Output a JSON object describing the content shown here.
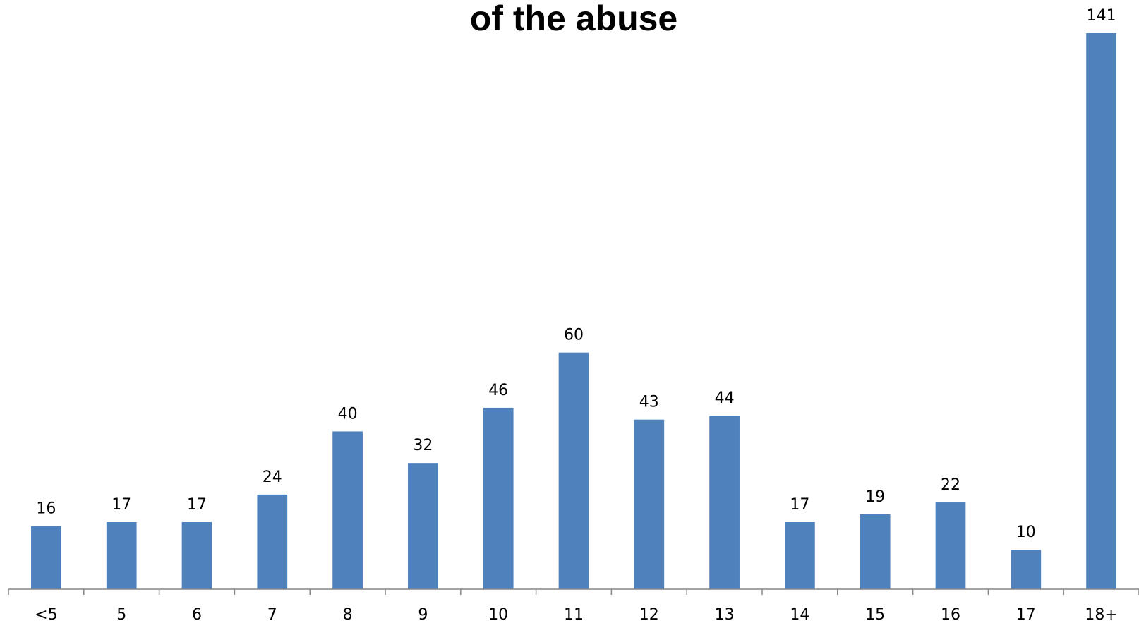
{
  "chart_data": {
    "type": "bar",
    "title": "of the abuse",
    "xlabel": "",
    "ylabel": "",
    "categories": [
      "<5",
      "5",
      "6",
      "7",
      "8",
      "9",
      "10",
      "11",
      "12",
      "13",
      "14",
      "15",
      "16",
      "17",
      "18+"
    ],
    "values": [
      16,
      17,
      17,
      24,
      40,
      32,
      46,
      60,
      43,
      44,
      17,
      19,
      22,
      10,
      141
    ],
    "ylim": [
      0,
      141
    ],
    "grid": false,
    "legend": "none",
    "bar_color": "#4f81bd",
    "axis_color": "#868686"
  }
}
